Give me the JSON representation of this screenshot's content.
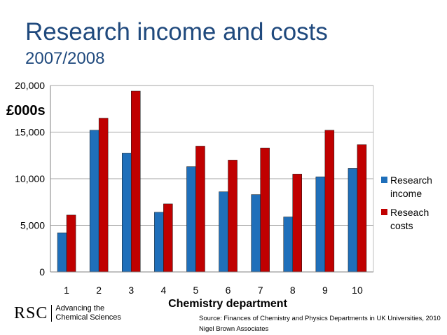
{
  "slide": {
    "title": "Research income and costs",
    "subtitle": "2007/2008",
    "source_line1": "Source: Finances of Chemistry and Physics Departments in UK Universities, 2010",
    "source_line2": "Nigel Brown Associates",
    "logo_text": "RSC",
    "logo_tagline_line1": "Advancing the",
    "logo_tagline_line2": "Chemical Sciences"
  },
  "chart_data": {
    "type": "bar",
    "title": "Research income and costs",
    "subtitle": "2007/2008",
    "xlabel": "Chemistry department",
    "ylabel": "£000s",
    "categories": [
      "1",
      "2",
      "3",
      "4",
      "5",
      "6",
      "7",
      "8",
      "9",
      "10"
    ],
    "ylim": [
      0,
      20000
    ],
    "yticks": [
      0,
      5000,
      10000,
      15000,
      20000
    ],
    "ytick_labels": [
      "0",
      "5,000",
      "10,000",
      "15,000",
      "20,000"
    ],
    "grid": true,
    "legend_position": "right",
    "series": [
      {
        "name_lines": [
          "Research",
          "income"
        ],
        "color": "#1f6fba",
        "values": [
          4200,
          15200,
          12750,
          6400,
          11300,
          8600,
          8300,
          5900,
          10200,
          11100
        ]
      },
      {
        "name_lines": [
          "Reseach",
          "costs"
        ],
        "color": "#c00000",
        "values": [
          6100,
          16500,
          19400,
          7300,
          13500,
          12000,
          13300,
          10500,
          15200,
          13650
        ]
      }
    ]
  }
}
